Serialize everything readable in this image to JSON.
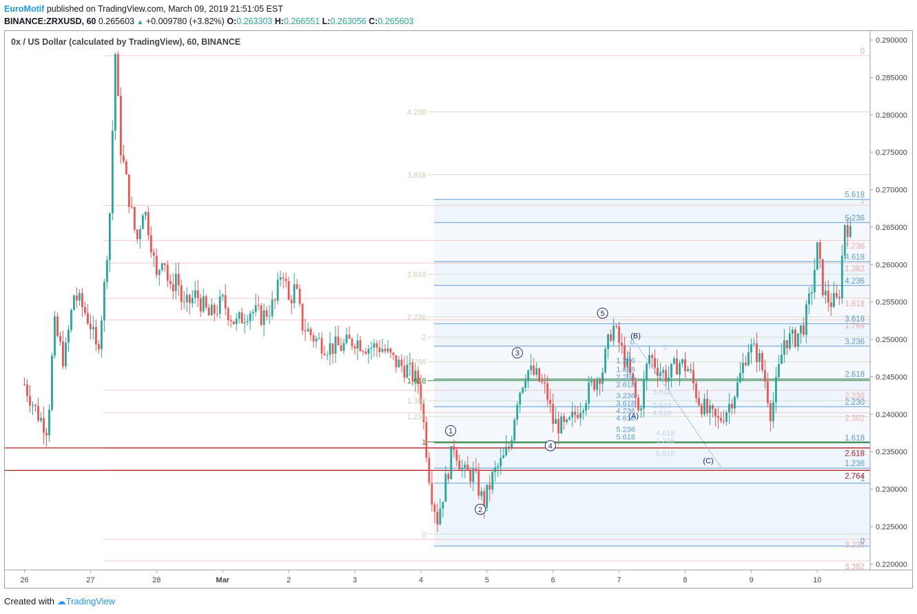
{
  "header": {
    "brand": "EuroMotif",
    "published": "published on TradingView.com, March 09, 2019 21:51:05 EST",
    "symbol": "BINANCE:ZRXUSD, 60",
    "last": "0.265603",
    "change": "+0.009780 (+3.82%)",
    "o_label": "O:",
    "o": "0.263303",
    "h_label": "H:",
    "h": "0.266551",
    "l_label": "L:",
    "l": "0.263056",
    "c_label": "C:",
    "c": "0.265603"
  },
  "footer": {
    "created_with": "Created with",
    "brand": "TradingView"
  },
  "colors": {
    "up": "#26a69a",
    "down": "#ef5350",
    "red_line": "#b71c1c",
    "blue_fib": "#5b9bd5"
  },
  "chart_data": {
    "type": "candlestick",
    "title": "0x / US Dollar (calculated by TradingView), 60, BINANCE",
    "x_ticks": [
      "26",
      "27",
      "28",
      "Mar",
      "2",
      "3",
      "4",
      "5",
      "6",
      "7",
      "8",
      "9",
      "10"
    ],
    "y_ticks": [
      "0.290000",
      "0.285000",
      "0.280000",
      "0.275000",
      "0.270000",
      "0.265000",
      "0.260000",
      "0.255000",
      "0.250000",
      "0.245000",
      "0.240000",
      "0.235000",
      "0.230000",
      "0.225000",
      "0.220000"
    ],
    "ylim": [
      0.2192,
      0.2912
    ],
    "x_range_days": [
      -0.08,
      12.4
    ],
    "grid": false,
    "price_path": [
      [
        0.0,
        0.244
      ],
      [
        0.2,
        0.24
      ],
      [
        0.35,
        0.238
      ],
      [
        0.45,
        0.252
      ],
      [
        0.6,
        0.247
      ],
      [
        0.75,
        0.256
      ],
      [
        0.9,
        0.254
      ],
      [
        1.0,
        0.252
      ],
      [
        1.1,
        0.248
      ],
      [
        1.2,
        0.256
      ],
      [
        1.3,
        0.268
      ],
      [
        1.37,
        0.289
      ],
      [
        1.45,
        0.276
      ],
      [
        1.6,
        0.268
      ],
      [
        1.7,
        0.263
      ],
      [
        1.8,
        0.268
      ],
      [
        1.9,
        0.264
      ],
      [
        2.0,
        0.258
      ],
      [
        2.1,
        0.262
      ],
      [
        2.2,
        0.256
      ],
      [
        2.3,
        0.259
      ],
      [
        2.4,
        0.254
      ],
      [
        2.6,
        0.256
      ],
      [
        2.8,
        0.253
      ],
      [
        3.0,
        0.255
      ],
      [
        3.2,
        0.252
      ],
      [
        3.4,
        0.254
      ],
      [
        3.6,
        0.253
      ],
      [
        3.8,
        0.255
      ],
      [
        3.9,
        0.26
      ],
      [
        4.0,
        0.255
      ],
      [
        4.1,
        0.257
      ],
      [
        4.2,
        0.252
      ],
      [
        4.4,
        0.25
      ],
      [
        4.6,
        0.249
      ],
      [
        4.8,
        0.249
      ],
      [
        5.0,
        0.25
      ],
      [
        5.2,
        0.249
      ],
      [
        5.4,
        0.249
      ],
      [
        5.6,
        0.247
      ],
      [
        5.8,
        0.246
      ],
      [
        5.98,
        0.244
      ],
      [
        6.05,
        0.238
      ],
      [
        6.15,
        0.23
      ],
      [
        6.25,
        0.226
      ],
      [
        6.35,
        0.23
      ],
      [
        6.5,
        0.236
      ],
      [
        6.65,
        0.232
      ],
      [
        6.8,
        0.232
      ],
      [
        6.95,
        0.228
      ],
      [
        7.1,
        0.232
      ],
      [
        7.25,
        0.234
      ],
      [
        7.35,
        0.236
      ],
      [
        7.45,
        0.242
      ],
      [
        7.6,
        0.246
      ],
      [
        7.75,
        0.245
      ],
      [
        7.9,
        0.243
      ],
      [
        8.0,
        0.239
      ],
      [
        8.2,
        0.238
      ],
      [
        8.4,
        0.241
      ],
      [
        8.6,
        0.244
      ],
      [
        8.75,
        0.246
      ],
      [
        8.9,
        0.252
      ],
      [
        9.1,
        0.247
      ],
      [
        9.2,
        0.244
      ],
      [
        9.3,
        0.24
      ],
      [
        9.45,
        0.248
      ],
      [
        9.6,
        0.246
      ],
      [
        9.75,
        0.245
      ],
      [
        9.9,
        0.247
      ],
      [
        10.05,
        0.246
      ],
      [
        10.2,
        0.242
      ],
      [
        10.35,
        0.24
      ],
      [
        10.5,
        0.239
      ],
      [
        10.65,
        0.241
      ],
      [
        10.8,
        0.244
      ],
      [
        10.95,
        0.249
      ],
      [
        11.1,
        0.248
      ],
      [
        11.2,
        0.245
      ],
      [
        11.3,
        0.24
      ],
      [
        11.38,
        0.244
      ],
      [
        11.5,
        0.25
      ],
      [
        11.65,
        0.25
      ],
      [
        11.8,
        0.252
      ],
      [
        11.9,
        0.256
      ],
      [
        12.0,
        0.262
      ],
      [
        12.1,
        0.256
      ],
      [
        12.2,
        0.255
      ],
      [
        12.32,
        0.255
      ],
      [
        12.42,
        0.266
      ],
      [
        12.5,
        0.264
      ]
    ],
    "elliott_labels": [
      {
        "text": "1",
        "x": 6.45,
        "y": 0.2378
      },
      {
        "text": "2",
        "x": 6.9,
        "y": 0.2273
      },
      {
        "text": "3",
        "x": 7.46,
        "y": 0.2482
      },
      {
        "text": "4",
        "x": 7.96,
        "y": 0.2358
      },
      {
        "text": "5",
        "x": 8.75,
        "y": 0.2535
      },
      {
        "text": "(B)",
        "x": 9.25,
        "y": 0.2505
      },
      {
        "text": "(A)",
        "x": 9.22,
        "y": 0.2398
      },
      {
        "text": "(C)",
        "x": 10.35,
        "y": 0.2338
      }
    ],
    "horizontal_lines": [
      {
        "y": 0.2355,
        "color": "#b71c1c"
      },
      {
        "y": 0.2325,
        "color": "#b71c1c"
      }
    ],
    "fib_left": {
      "levels": [
        {
          "label": "0",
          "y": 0.224
        },
        {
          "label": "1",
          "y": 0.2363
        },
        {
          "label": "1.236",
          "y": 0.2397
        },
        {
          "label": "1.382",
          "y": 0.2418
        },
        {
          "label": "1.618",
          "y": 0.2445
        },
        {
          "label": "1.786",
          "y": 0.247
        },
        {
          "label": "2",
          "y": 0.2503
        },
        {
          "label": "2.236",
          "y": 0.253
        },
        {
          "label": "2.618",
          "y": 0.2587
        },
        {
          "label": "3.618",
          "y": 0.272
        },
        {
          "label": "4.236",
          "y": 0.2804
        }
      ]
    },
    "fib_right_blue": {
      "levels": [
        {
          "label": "0",
          "y": 0.2224
        },
        {
          "label": "1",
          "y": 0.2308
        },
        {
          "label": "1.236",
          "y": 0.2328
        },
        {
          "label": "1.618",
          "y": 0.2362
        },
        {
          "label": "2.230",
          "y": 0.241
        },
        {
          "label": "2.618",
          "y": 0.2447
        },
        {
          "label": "3.236",
          "y": 0.2491
        },
        {
          "label": "3.618",
          "y": 0.2521
        },
        {
          "label": "4.236",
          "y": 0.2572
        },
        {
          "label": "4.618",
          "y": 0.2604
        },
        {
          "label": "5.236",
          "y": 0.2656
        },
        {
          "label": "5.618",
          "y": 0.2687
        }
      ]
    },
    "fib_right_pink": {
      "levels": [
        {
          "label": "0",
          "y": 0.2879
        },
        {
          "label": "1",
          "y": 0.2679
        },
        {
          "label": "1.236",
          "y": 0.2632
        },
        {
          "label": "1.382",
          "y": 0.2602
        },
        {
          "label": "1.618",
          "y": 0.2555
        },
        {
          "label": "1.764",
          "y": 0.2526
        },
        {
          "label": "2.236",
          "y": 0.2432
        },
        {
          "label": "2.302",
          "y": 0.2402
        },
        {
          "label": "2.618",
          "y": 0.2355
        },
        {
          "label": "2.764",
          "y": 0.2325
        },
        {
          "label": "3.236",
          "y": 0.2233
        },
        {
          "label": "3.382",
          "y": 0.2204
        }
      ]
    },
    "fib_mini": [
      {
        "label": "1.236",
        "x": 9.1,
        "y": 0.2472
      },
      {
        "label": "1.618",
        "x": 9.1,
        "y": 0.246
      },
      {
        "label": "2.236",
        "x": 9.1,
        "y": 0.245
      },
      {
        "label": "2.618",
        "x": 9.1,
        "y": 0.244
      },
      {
        "label": "3.236",
        "x": 9.1,
        "y": 0.2425
      },
      {
        "label": "3.618",
        "x": 9.1,
        "y": 0.2415
      },
      {
        "label": "4.236",
        "x": 9.1,
        "y": 0.2405
      },
      {
        "label": "4.618",
        "x": 9.1,
        "y": 0.2395
      },
      {
        "label": "5.236",
        "x": 9.1,
        "y": 0.238
      },
      {
        "label": "5.618",
        "x": 9.1,
        "y": 0.237
      },
      {
        "label": "1.236",
        "x": 9.7,
        "y": 0.2365
      },
      {
        "label": "4.618",
        "x": 9.7,
        "y": 0.2375
      },
      {
        "label": "5.618",
        "x": 9.7,
        "y": 0.2348
      },
      {
        "label": "0",
        "x": 9.2,
        "y": 0.2497
      },
      {
        "label": "0",
        "x": 9.7,
        "y": 0.249
      },
      {
        "label": "1",
        "x": 9.15,
        "y": 0.248
      },
      {
        "label": "2.618",
        "x": 9.65,
        "y": 0.2412
      },
      {
        "label": "3.618",
        "x": 9.65,
        "y": 0.243
      },
      {
        "label": "4.618",
        "x": 9.65,
        "y": 0.2402
      }
    ]
  }
}
